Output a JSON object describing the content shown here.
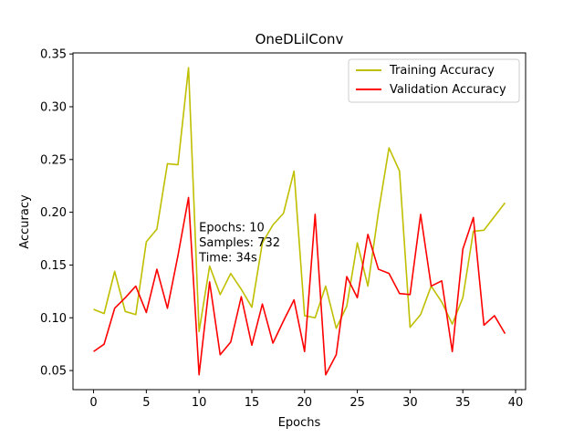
{
  "chart_data": {
    "type": "line",
    "title": "OneDLilConv",
    "xlabel": "Epochs",
    "ylabel": "Accuracy",
    "xlim": [
      -1.95,
      40.95
    ],
    "ylim": [
      0.0319,
      0.351
    ],
    "xticks": [
      0,
      5,
      10,
      15,
      20,
      25,
      30,
      35,
      40
    ],
    "yticks": [
      0.05,
      0.1,
      0.15,
      0.2,
      0.25,
      0.3,
      0.35
    ],
    "ytick_labels": [
      "0.05",
      "0.10",
      "0.15",
      "0.20",
      "0.25",
      "0.30",
      "0.35"
    ],
    "legend_position": "top-right",
    "annotation": {
      "lines": [
        "Epochs: 10",
        "Samples: 732",
        "Time: 34s"
      ],
      "x": 10,
      "y": 0.182
    },
    "x": [
      0,
      1,
      2,
      3,
      4,
      5,
      6,
      7,
      8,
      9,
      10,
      11,
      12,
      13,
      14,
      15,
      16,
      17,
      18,
      19,
      20,
      21,
      22,
      23,
      24,
      25,
      26,
      27,
      28,
      29,
      30,
      31,
      32,
      33,
      34,
      35,
      36,
      37,
      38,
      39
    ],
    "series": [
      {
        "name": "Training Accuracy",
        "color": "#bfbf00",
        "values": [
          0.108,
          0.104,
          0.144,
          0.106,
          0.103,
          0.172,
          0.184,
          0.246,
          0.245,
          0.337,
          0.087,
          0.149,
          0.122,
          0.142,
          0.127,
          0.11,
          0.171,
          0.188,
          0.199,
          0.239,
          0.102,
          0.1,
          0.13,
          0.09,
          0.111,
          0.171,
          0.13,
          0.2,
          0.261,
          0.239,
          0.091,
          0.103,
          0.13,
          0.115,
          0.094,
          0.119,
          0.182,
          0.183,
          0.196,
          0.209
        ]
      },
      {
        "name": "Validation Accuracy",
        "color": "#ff0000",
        "values": [
          0.068,
          0.075,
          0.109,
          0.119,
          0.13,
          0.105,
          0.146,
          0.109,
          0.159,
          0.214,
          0.046,
          0.134,
          0.065,
          0.077,
          0.12,
          0.074,
          0.113,
          0.076,
          0.097,
          0.117,
          0.068,
          0.198,
          0.046,
          0.065,
          0.139,
          0.119,
          0.179,
          0.146,
          0.142,
          0.123,
          0.122,
          0.198,
          0.13,
          0.135,
          0.068,
          0.165,
          0.195,
          0.093,
          0.102,
          0.085
        ]
      }
    ]
  }
}
